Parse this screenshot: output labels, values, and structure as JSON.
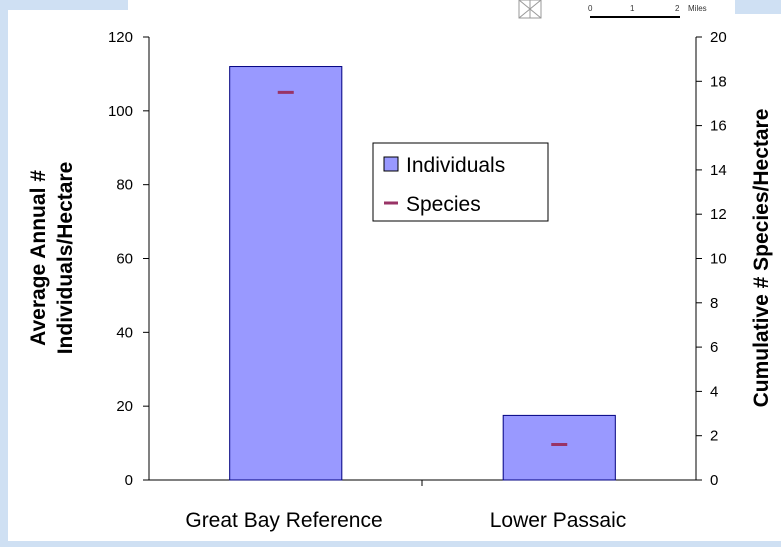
{
  "chart_data": {
    "type": "bar",
    "categories": [
      "Great Bay Reference",
      "Lower Passaic"
    ],
    "series": [
      {
        "name": "Individuals",
        "axis": "left",
        "mark": "bar",
        "values": [
          112,
          17.5
        ]
      },
      {
        "name": "Species",
        "axis": "right",
        "mark": "dash",
        "values": [
          17.5,
          1.6
        ]
      }
    ],
    "ylabel": [
      "Average Annual #",
      "Individuals/Hectare"
    ],
    "ylabel_right": "Cumulative # Species/Hectare",
    "ylim": [
      0,
      120
    ],
    "yticks": [
      "0",
      "20",
      "40",
      "60",
      "80",
      "100",
      "120"
    ],
    "ylim_right": [
      0,
      20
    ],
    "yticks_right": [
      "0",
      "2",
      "4",
      "6",
      "8",
      "10",
      "12",
      "14",
      "16",
      "18",
      "20"
    ],
    "grid": false,
    "legend_position": "center-right",
    "colors": {
      "bar_fill": "#9999ff",
      "bar_stroke": "#000080",
      "species_mark": "#993366"
    }
  },
  "map_scale": {
    "ticks": [
      "0",
      "1",
      "2"
    ],
    "unit": "Miles"
  }
}
